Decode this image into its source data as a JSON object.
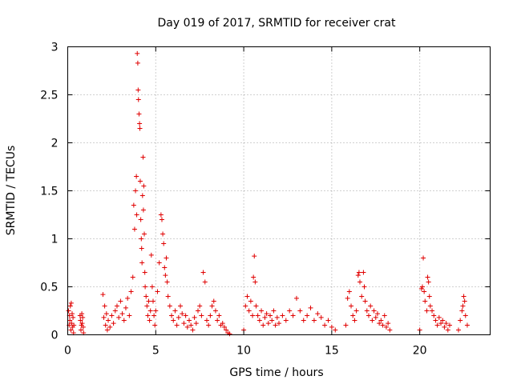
{
  "chart_data": {
    "type": "scatter",
    "title": "Day 019 of 2017, SRMTID for receiver crat",
    "xlabel": "GPS time / hours",
    "ylabel": "SRMTID / TECUs",
    "xlim": [
      0,
      24
    ],
    "ylim": [
      0,
      3
    ],
    "xticks": [
      0,
      5,
      10,
      15,
      20
    ],
    "yticks": [
      0,
      0.5,
      1,
      1.5,
      2,
      2.5,
      3
    ],
    "xtick_labels": [
      "0",
      "5",
      "10",
      "15",
      "20"
    ],
    "ytick_labels": [
      "0",
      "0.5",
      "1",
      "1.5",
      "2",
      "2.5",
      "3"
    ],
    "grid": true,
    "marker": "+",
    "color": "#e00000",
    "series": [
      {
        "name": "SRMTID",
        "x": [
          0.05,
          0.08,
          0.1,
          0.12,
          0.15,
          0.18,
          0.2,
          0.22,
          0.25,
          0.28,
          0.3,
          0.33,
          0.35,
          0.7,
          0.72,
          0.75,
          0.78,
          0.8,
          0.82,
          0.85,
          0.88,
          0.9,
          2.0,
          2.05,
          2.1,
          2.15,
          2.2,
          2.25,
          2.3,
          2.4,
          2.5,
          2.6,
          2.7,
          2.8,
          2.9,
          3.0,
          3.1,
          3.2,
          3.3,
          3.4,
          3.5,
          3.6,
          3.7,
          3.75,
          3.8,
          3.85,
          3.9,
          3.92,
          3.95,
          3.98,
          4.0,
          4.02,
          4.05,
          4.08,
          4.1,
          4.12,
          4.15,
          4.18,
          4.2,
          4.22,
          4.25,
          4.28,
          4.3,
          4.32,
          4.35,
          4.38,
          4.4,
          4.45,
          4.5,
          4.55,
          4.6,
          4.65,
          4.7,
          4.75,
          4.8,
          4.85,
          4.9,
          4.95,
          5.0,
          5.1,
          5.2,
          5.3,
          5.35,
          5.4,
          5.45,
          5.5,
          5.55,
          5.6,
          5.65,
          5.7,
          5.8,
          5.9,
          6.0,
          6.1,
          6.2,
          6.3,
          6.4,
          6.5,
          6.6,
          6.7,
          6.8,
          6.9,
          7.0,
          7.1,
          7.2,
          7.3,
          7.4,
          7.5,
          7.6,
          7.7,
          7.8,
          7.9,
          8.0,
          8.1,
          8.2,
          8.3,
          8.4,
          8.5,
          8.6,
          8.7,
          8.8,
          8.9,
          9.0,
          9.1,
          9.2,
          10.0,
          10.1,
          10.2,
          10.3,
          10.4,
          10.5,
          10.55,
          10.6,
          10.65,
          10.7,
          10.8,
          10.9,
          11.0,
          11.1,
          11.2,
          11.3,
          11.4,
          11.5,
          11.6,
          11.7,
          11.8,
          11.9,
          12.0,
          12.2,
          12.4,
          12.6,
          12.8,
          13.0,
          13.2,
          13.4,
          13.6,
          13.8,
          14.0,
          14.2,
          14.4,
          14.6,
          14.8,
          15.0,
          15.2,
          15.8,
          15.9,
          16.0,
          16.1,
          16.2,
          16.3,
          16.4,
          16.5,
          16.55,
          16.6,
          16.7,
          16.8,
          16.85,
          16.9,
          17.0,
          17.1,
          17.2,
          17.3,
          17.4,
          17.5,
          17.6,
          17.7,
          17.8,
          17.9,
          18.0,
          18.1,
          18.2,
          18.3,
          20.0,
          20.1,
          20.15,
          20.2,
          20.25,
          20.3,
          20.4,
          20.45,
          20.5,
          20.55,
          20.6,
          20.7,
          20.8,
          20.9,
          21.0,
          21.1,
          21.2,
          21.3,
          21.4,
          21.5,
          21.6,
          21.7,
          22.2,
          22.3,
          22.4,
          22.45,
          22.5,
          22.55,
          22.6,
          22.7
        ],
        "y": [
          0.25,
          0.1,
          0.2,
          0.15,
          0.3,
          0.05,
          0.33,
          0.12,
          0.22,
          0.08,
          0.18,
          0.02,
          0.1,
          0.2,
          0.15,
          0.05,
          0.1,
          0.22,
          0.12,
          0.18,
          0.08,
          0.02,
          0.42,
          0.18,
          0.3,
          0.1,
          0.22,
          0.05,
          0.15,
          0.08,
          0.2,
          0.12,
          0.25,
          0.3,
          0.18,
          0.35,
          0.22,
          0.15,
          0.28,
          0.38,
          0.2,
          0.45,
          0.6,
          1.35,
          1.1,
          1.5,
          1.65,
          1.25,
          2.93,
          2.83,
          2.55,
          2.45,
          2.3,
          2.2,
          2.15,
          1.6,
          1.2,
          1.0,
          0.9,
          0.75,
          1.45,
          1.85,
          1.3,
          1.55,
          1.05,
          0.65,
          0.5,
          0.4,
          0.3,
          0.2,
          0.35,
          0.15,
          0.25,
          0.83,
          0.5,
          0.35,
          0.2,
          0.1,
          0.25,
          0.45,
          0.75,
          1.25,
          1.2,
          1.05,
          0.95,
          0.7,
          0.62,
          0.8,
          0.55,
          0.4,
          0.3,
          0.2,
          0.15,
          0.25,
          0.1,
          0.18,
          0.3,
          0.22,
          0.12,
          0.2,
          0.08,
          0.15,
          0.1,
          0.05,
          0.18,
          0.12,
          0.25,
          0.3,
          0.2,
          0.65,
          0.55,
          0.15,
          0.1,
          0.2,
          0.3,
          0.35,
          0.25,
          0.15,
          0.2,
          0.1,
          0.12,
          0.08,
          0.05,
          0.02,
          0.01,
          0.05,
          0.3,
          0.4,
          0.25,
          0.35,
          0.2,
          0.6,
          0.82,
          0.55,
          0.3,
          0.2,
          0.15,
          0.25,
          0.1,
          0.18,
          0.22,
          0.12,
          0.2,
          0.15,
          0.25,
          0.1,
          0.18,
          0.12,
          0.2,
          0.15,
          0.25,
          0.2,
          0.38,
          0.25,
          0.15,
          0.2,
          0.28,
          0.15,
          0.22,
          0.18,
          0.1,
          0.15,
          0.08,
          0.05,
          0.1,
          0.38,
          0.45,
          0.3,
          0.2,
          0.15,
          0.25,
          0.62,
          0.65,
          0.55,
          0.4,
          0.65,
          0.5,
          0.35,
          0.25,
          0.2,
          0.3,
          0.15,
          0.25,
          0.18,
          0.22,
          0.12,
          0.15,
          0.1,
          0.2,
          0.08,
          0.12,
          0.05,
          0.05,
          0.48,
          0.5,
          0.8,
          0.45,
          0.35,
          0.25,
          0.6,
          0.55,
          0.4,
          0.3,
          0.25,
          0.2,
          0.15,
          0.1,
          0.18,
          0.12,
          0.15,
          0.08,
          0.12,
          0.05,
          0.1,
          0.05,
          0.15,
          0.25,
          0.3,
          0.4,
          0.35,
          0.2,
          0.1
        ]
      }
    ]
  }
}
